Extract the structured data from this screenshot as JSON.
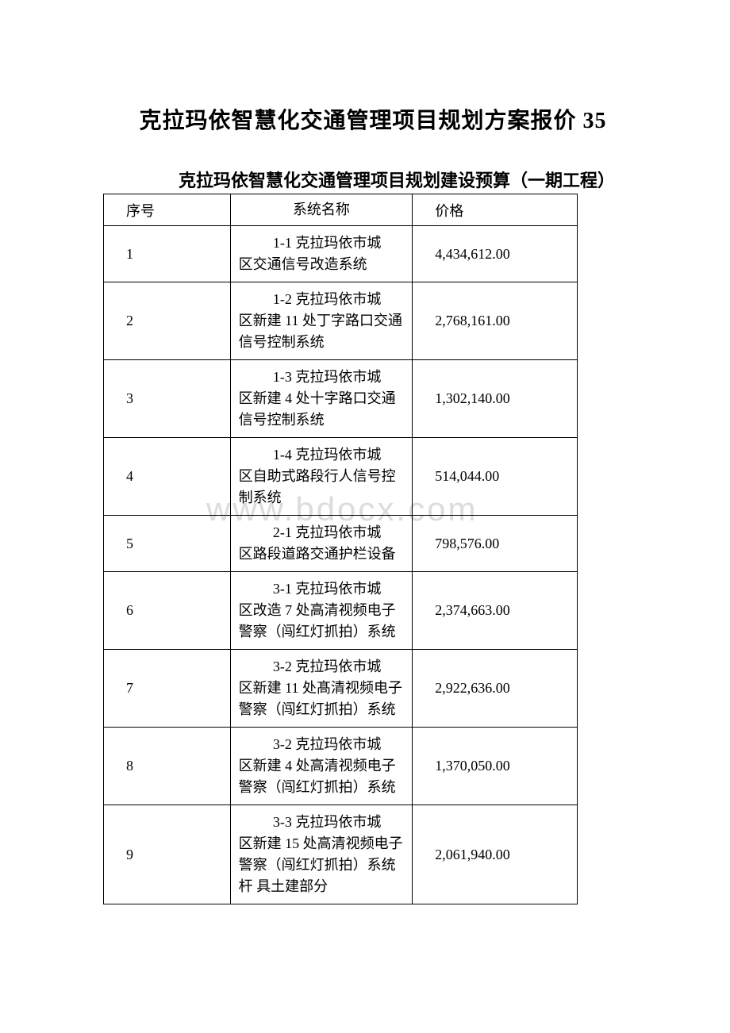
{
  "document": {
    "main_title": "克拉玛依智慧化交通管理项目规划方案报价 35",
    "sub_title": "克拉玛依智慧化交通管理项目规划建设预算（一期工程）",
    "watermark_text": "www.bdocx.com"
  },
  "table": {
    "headers": {
      "index": "序号",
      "name": "系统名称",
      "price": "价格"
    },
    "rows": [
      {
        "index": "1",
        "name_line1": "1-1 克拉玛依市城",
        "name_rest": "区交通信号改造系统",
        "price": "4,434,612.00"
      },
      {
        "index": "2",
        "name_line1": "1-2 克拉玛依市城",
        "name_rest": "区新建 11 处丁字路口交通信号控制系统",
        "price": "2,768,161.00"
      },
      {
        "index": "3",
        "name_line1": "1-3 克拉玛依市城",
        "name_rest": "区新建 4 处十字路口交通信号控制系统",
        "price": "1,302,140.00"
      },
      {
        "index": "4",
        "name_line1": "1-4 克拉玛依市城",
        "name_rest": "区自助式路段行人信号控制系统",
        "price": "514,044.00"
      },
      {
        "index": "5",
        "name_line1": "2-1 克拉玛依市城",
        "name_rest": "区路段道路交通护栏设备",
        "price": "798,576.00"
      },
      {
        "index": "6",
        "name_line1": "3-1 克拉玛依市城",
        "name_rest": "区改造 7 处高清视频电子警察（闯红灯抓拍）系统",
        "price": "2,374,663.00"
      },
      {
        "index": "7",
        "name_line1": "3-2 克拉玛依市城",
        "name_rest": "区新建 11 处髙清视频电子警察（闯红灯抓拍）系统",
        "price": "2,922,636.00"
      },
      {
        "index": "8",
        "name_line1": "3-2 克拉玛依市城",
        "name_rest": "区新建 4 处高清视频电子警察（闯红灯抓拍）系统",
        "price": "1,370,050.00"
      },
      {
        "index": "9",
        "name_line1": "3-3 克拉玛依市城",
        "name_rest": "区新建 15 处高清视频电子警察（闯红灯抓拍）系统杆 具土建部分",
        "price": "2,061,940.00"
      }
    ]
  },
  "styling": {
    "background_color": "#ffffff",
    "text_color": "#000000",
    "border_color": "#000000",
    "watermark_color": "#dcdcdc",
    "main_title_fontsize": 28,
    "sub_title_fontsize": 22,
    "table_fontsize": 18,
    "watermark_fontsize": 42
  }
}
